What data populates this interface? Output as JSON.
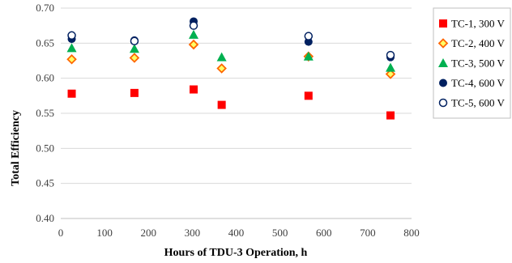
{
  "chart_data": {
    "type": "scatter",
    "title": "",
    "xlabel": "Hours of TDU-3 Operation, h",
    "ylabel": "Total Efficiency",
    "xlim": [
      0,
      800
    ],
    "ylim": [
      0.4,
      0.7
    ],
    "xticks": [
      0,
      100,
      200,
      300,
      400,
      500,
      600,
      700,
      800
    ],
    "xtick_labels": [
      "0",
      "100",
      "200",
      "300",
      "400",
      "500",
      "600",
      "700",
      "800"
    ],
    "yticks": [
      0.4,
      0.45,
      0.5,
      0.55,
      0.6,
      0.65,
      0.7
    ],
    "ytick_labels": [
      "0.40",
      "0.45",
      "0.50",
      "0.55",
      "0.60",
      "0.65",
      "0.70"
    ],
    "grid": "horizontal",
    "legend_position": "right",
    "series": [
      {
        "name": "TC-1, 300 V",
        "marker": "square",
        "color": "#ff0000",
        "points": [
          [
            25,
            0.578
          ],
          [
            168,
            0.579
          ],
          [
            303,
            0.584
          ],
          [
            367,
            0.562
          ],
          [
            565,
            0.575
          ],
          [
            752,
            0.547
          ]
        ]
      },
      {
        "name": "TC-2, 400 V",
        "marker": "diamond-open",
        "color": "#ff6600",
        "points": [
          [
            25,
            0.627
          ],
          [
            168,
            0.629
          ],
          [
            303,
            0.648
          ],
          [
            367,
            0.614
          ],
          [
            565,
            0.631
          ],
          [
            752,
            0.606
          ]
        ]
      },
      {
        "name": "TC-3, 500 V",
        "marker": "triangle",
        "color": "#00b050",
        "points": [
          [
            25,
            0.643
          ],
          [
            168,
            0.642
          ],
          [
            303,
            0.662
          ],
          [
            367,
            0.63
          ],
          [
            565,
            0.631
          ],
          [
            752,
            0.615
          ]
        ]
      },
      {
        "name": "TC-4, 600 V",
        "marker": "circle",
        "color": "#002060",
        "points": [
          [
            25,
            0.656
          ],
          [
            168,
            0.654
          ],
          [
            303,
            0.681
          ],
          [
            565,
            0.652
          ],
          [
            752,
            0.63
          ]
        ]
      },
      {
        "name": "TC-5, 600 V",
        "marker": "circle-open",
        "color": "#002060",
        "points": [
          [
            25,
            0.661
          ],
          [
            168,
            0.653
          ],
          [
            303,
            0.675
          ],
          [
            565,
            0.66
          ],
          [
            752,
            0.633
          ]
        ]
      }
    ]
  }
}
